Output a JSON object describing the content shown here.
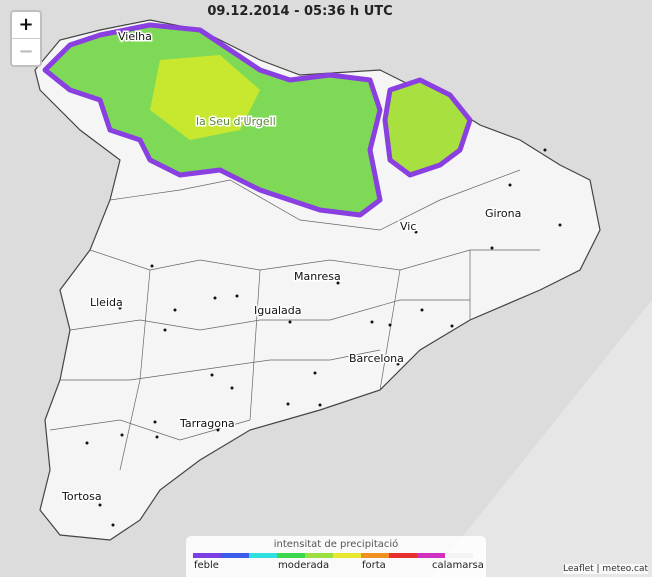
{
  "timestamp": "09.12.2014 - 05:36 h UTC",
  "zoom_in": "+",
  "zoom_out": "−",
  "places": [
    "Vielha",
    "la Seu d'Urgell",
    "Vic",
    "Girona",
    "Manresa",
    "Lleida",
    "Igualada",
    "Barcelona",
    "Tarragona",
    "Tortosa"
  ],
  "legend": {
    "title": "intensitat de precipitació",
    "labels": [
      "feble",
      "moderada",
      "forta",
      "calamarsa"
    ],
    "colors": [
      "#7b3fe4",
      "#3a5ce8",
      "#2fe0e0",
      "#3ad850",
      "#9be040",
      "#e8e830",
      "#f09020",
      "#e83030",
      "#d030c0",
      "#f4f4f4"
    ]
  },
  "attribution": "Leaflet | meteo.cat"
}
